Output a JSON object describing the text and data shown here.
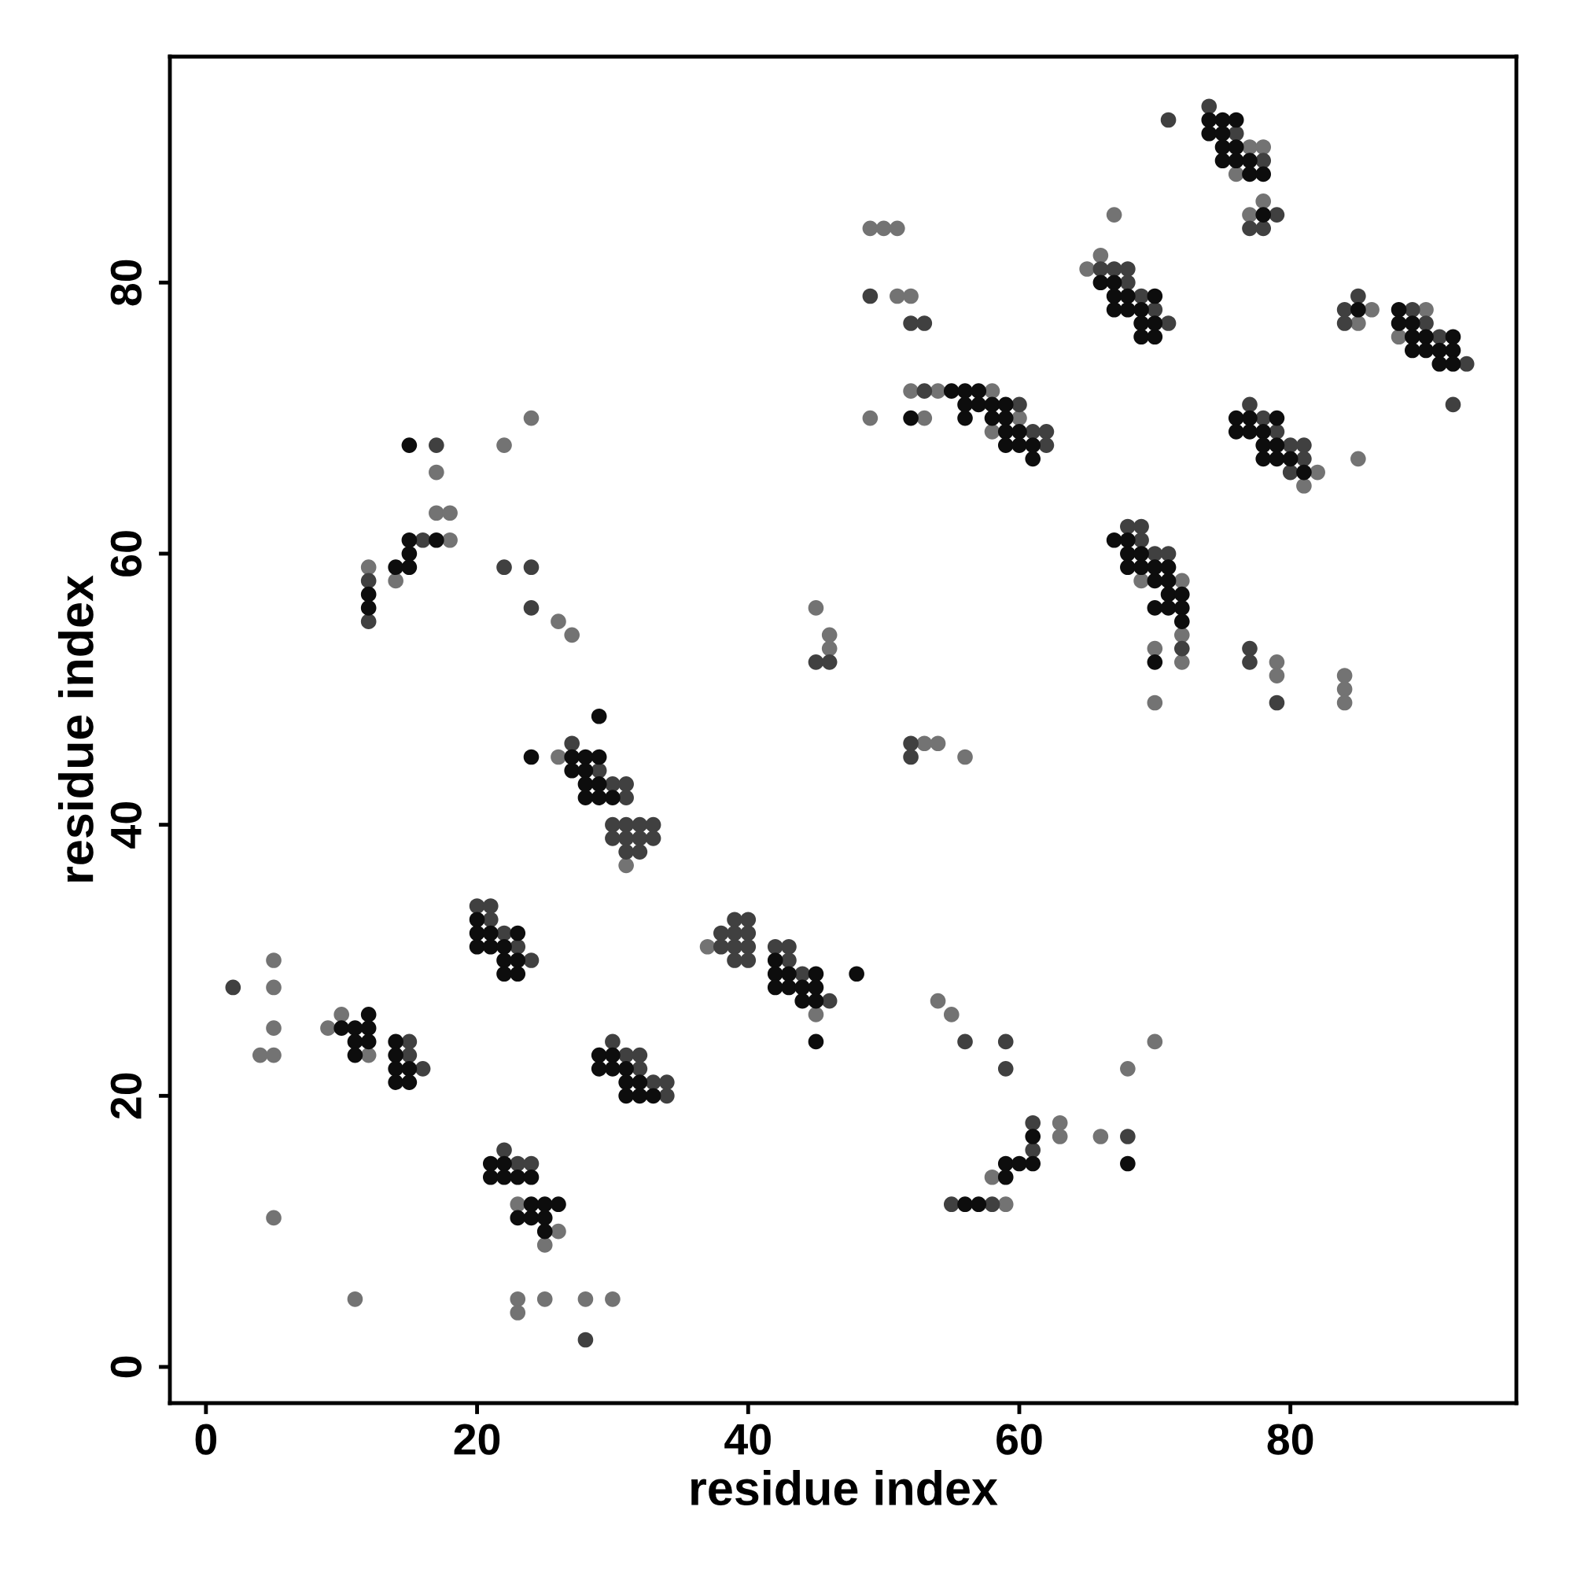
{
  "chart_data": {
    "type": "scatter",
    "xlabel": "residue index",
    "ylabel": "residue index",
    "xlim": [
      -2.66,
      96.67
    ],
    "ylim": [
      -2.67,
      96.67
    ],
    "xticks": [
      0,
      20,
      40,
      60,
      80
    ],
    "yticks": [
      0,
      20,
      40,
      60,
      80
    ],
    "grid": false,
    "marker": "circle",
    "series": [
      {
        "color": "#737373",
        "x": [
          4,
          5,
          5,
          5,
          5,
          5,
          9,
          10,
          12,
          11,
          23,
          26,
          25,
          23,
          23,
          25,
          28,
          30,
          37,
          45,
          54,
          55,
          68,
          70,
          63,
          63,
          58,
          59,
          66,
          12,
          14,
          18,
          17,
          18,
          17,
          22,
          24,
          26,
          27,
          26,
          31,
          45,
          46,
          46,
          53,
          54,
          56,
          49,
          50,
          51,
          51,
          52,
          49,
          52,
          54,
          58,
          53,
          60,
          58,
          67,
          66,
          65,
          69,
          72,
          72,
          70,
          72,
          70,
          79,
          79,
          84,
          84,
          84,
          77,
          78,
          76,
          78,
          77,
          86,
          90,
          85,
          88,
          85,
          82,
          81
        ],
        "values": [
          23,
          23,
          25,
          28,
          30,
          11,
          25,
          26,
          23,
          5,
          12,
          10,
          9,
          5,
          4,
          5,
          5,
          5,
          31,
          26,
          27,
          26,
          22,
          24,
          18,
          17,
          14,
          12,
          17,
          59,
          58,
          61,
          63,
          63,
          66,
          68,
          70,
          55,
          54,
          45,
          37,
          56,
          54,
          53,
          46,
          46,
          45,
          84,
          84,
          84,
          79,
          79,
          70,
          72,
          72,
          72,
          70,
          70,
          69,
          85,
          82,
          81,
          58,
          58,
          54,
          53,
          52,
          49,
          52,
          51,
          51,
          50,
          49,
          90,
          90,
          88,
          86,
          85,
          78,
          78,
          77,
          76,
          67,
          66,
          65
        ]
      },
      {
        "color": "#404040",
        "x": [
          2,
          15,
          15,
          16,
          20,
          21,
          21,
          22,
          23,
          24,
          22,
          23,
          24,
          28,
          30,
          31,
          32,
          32,
          33,
          34,
          34,
          39,
          40,
          38,
          39,
          40,
          38,
          39,
          40,
          39,
          40,
          42,
          43,
          43,
          44,
          46,
          56,
          59,
          59,
          61,
          61,
          55,
          58,
          68,
          12,
          12,
          16,
          17,
          22,
          24,
          24,
          27,
          29,
          30,
          31,
          31,
          30,
          31,
          32,
          33,
          30,
          31,
          32,
          33,
          31,
          32,
          45,
          46,
          52,
          52,
          49,
          52,
          53,
          53,
          60,
          61,
          62,
          62,
          66,
          67,
          68,
          68,
          69,
          70,
          71,
          68,
          69,
          69,
          70,
          71,
          72,
          77,
          77,
          79,
          71,
          74,
          76,
          78,
          79,
          77,
          78,
          85,
          84,
          89,
          84,
          90,
          91,
          93,
          92,
          77,
          78,
          79,
          80,
          81,
          81,
          80
        ],
        "values": [
          28,
          24,
          23,
          22,
          34,
          34,
          33,
          32,
          31,
          30,
          16,
          15,
          15,
          2,
          24,
          23,
          23,
          22,
          21,
          21,
          20,
          33,
          33,
          32,
          32,
          32,
          31,
          31,
          31,
          30,
          30,
          31,
          31,
          30,
          29,
          27,
          24,
          24,
          22,
          18,
          16,
          12,
          12,
          17,
          58,
          55,
          61,
          68,
          59,
          59,
          56,
          46,
          44,
          43,
          43,
          42,
          40,
          40,
          40,
          40,
          39,
          39,
          39,
          39,
          38,
          38,
          52,
          52,
          46,
          45,
          79,
          77,
          77,
          72,
          71,
          69,
          69,
          68,
          81,
          81,
          81,
          80,
          79,
          78,
          77,
          62,
          62,
          61,
          60,
          60,
          53,
          53,
          52,
          49,
          92,
          93,
          91,
          89,
          85,
          84,
          84,
          79,
          78,
          78,
          77,
          77,
          76,
          74,
          71,
          71,
          70,
          69,
          68,
          68,
          67,
          66
        ]
      },
      {
        "color": "#0d0d0d",
        "x": [
          10,
          11,
          12,
          12,
          11,
          12,
          11,
          14,
          14,
          14,
          15,
          14,
          15,
          20,
          20,
          21,
          23,
          20,
          21,
          22,
          22,
          23,
          22,
          23,
          21,
          22,
          21,
          22,
          23,
          24,
          24,
          25,
          26,
          23,
          24,
          25,
          25,
          29,
          30,
          29,
          30,
          31,
          31,
          32,
          31,
          32,
          33,
          42,
          42,
          43,
          45,
          42,
          43,
          44,
          45,
          44,
          45,
          45,
          48,
          61,
          59,
          60,
          61,
          59,
          56,
          57,
          68,
          12,
          12,
          14,
          15,
          15,
          15,
          17,
          15,
          29,
          24,
          27,
          28,
          29,
          27,
          28,
          28,
          29,
          28,
          29,
          30,
          55,
          56,
          57,
          56,
          57,
          58,
          59,
          52,
          56,
          58,
          59,
          59,
          60,
          59,
          60,
          61,
          61,
          66,
          67,
          67,
          68,
          70,
          67,
          68,
          69,
          69,
          70,
          69,
          70,
          67,
          68,
          68,
          69,
          68,
          69,
          70,
          71,
          70,
          71,
          71,
          72,
          70,
          71,
          72,
          72,
          70,
          74,
          75,
          76,
          74,
          75,
          75,
          76,
          75,
          76,
          77,
          77,
          78,
          78,
          85,
          88,
          88,
          89,
          89,
          90,
          92,
          89,
          90,
          91,
          92,
          91,
          92,
          76,
          77,
          79,
          76,
          77,
          78,
          78,
          79,
          78,
          79,
          80,
          81
        ],
        "values": [
          25,
          25,
          25,
          26,
          24,
          24,
          23,
          24,
          23,
          22,
          22,
          21,
          21,
          33,
          32,
          32,
          32,
          31,
          31,
          31,
          30,
          30,
          29,
          29,
          15,
          15,
          14,
          14,
          14,
          14,
          12,
          12,
          12,
          11,
          11,
          11,
          10,
          23,
          23,
          22,
          22,
          22,
          21,
          21,
          20,
          20,
          20,
          30,
          29,
          29,
          29,
          28,
          28,
          28,
          28,
          27,
          27,
          24,
          29,
          17,
          15,
          15,
          15,
          14,
          12,
          12,
          15,
          57,
          56,
          59,
          59,
          60,
          61,
          61,
          68,
          48,
          45,
          45,
          45,
          45,
          44,
          44,
          43,
          43,
          42,
          42,
          42,
          72,
          72,
          72,
          71,
          71,
          71,
          71,
          70,
          70,
          70,
          70,
          69,
          69,
          68,
          68,
          68,
          67,
          80,
          80,
          79,
          79,
          79,
          78,
          78,
          78,
          77,
          77,
          76,
          76,
          61,
          61,
          60,
          60,
          59,
          59,
          59,
          59,
          58,
          58,
          57,
          57,
          56,
          56,
          56,
          55,
          52,
          92,
          92,
          92,
          91,
          91,
          90,
          90,
          89,
          89,
          89,
          88,
          88,
          85,
          78,
          78,
          77,
          77,
          76,
          76,
          76,
          75,
          75,
          75,
          75,
          74,
          74,
          70,
          70,
          70,
          69,
          69,
          69,
          68,
          68,
          67,
          67,
          67,
          66
        ]
      }
    ]
  }
}
